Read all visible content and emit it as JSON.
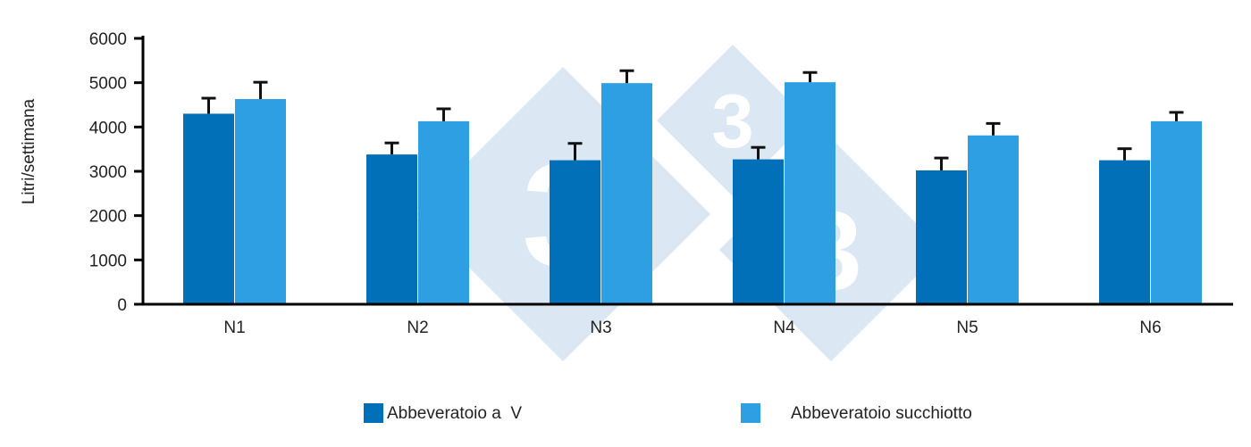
{
  "chart_data": {
    "type": "bar",
    "title": "",
    "xlabel": "",
    "ylabel": "Litri/settimana",
    "ylim": [
      0,
      6000
    ],
    "yticks": [
      0,
      1000,
      2000,
      3000,
      4000,
      5000,
      6000
    ],
    "grid": false,
    "legend_position": "bottom",
    "categories": [
      "N1",
      "N2",
      "N3",
      "N4",
      "N5",
      "N6"
    ],
    "series": [
      {
        "name": "Abbeveratoio a  V",
        "color": "#0270b8",
        "values": [
          4300,
          3380,
          3250,
          3270,
          3020,
          3250
        ],
        "errors": [
          350,
          260,
          380,
          270,
          280,
          260
        ]
      },
      {
        "name": "Abbeveratoio succhiotto",
        "color": "#2e9fe3",
        "values": [
          4630,
          4130,
          4990,
          5010,
          3810,
          4130
        ],
        "errors": [
          380,
          280,
          280,
          220,
          270,
          200
        ]
      }
    ]
  },
  "watermark": {
    "glyph": "3",
    "color": "#dbe8f3"
  }
}
